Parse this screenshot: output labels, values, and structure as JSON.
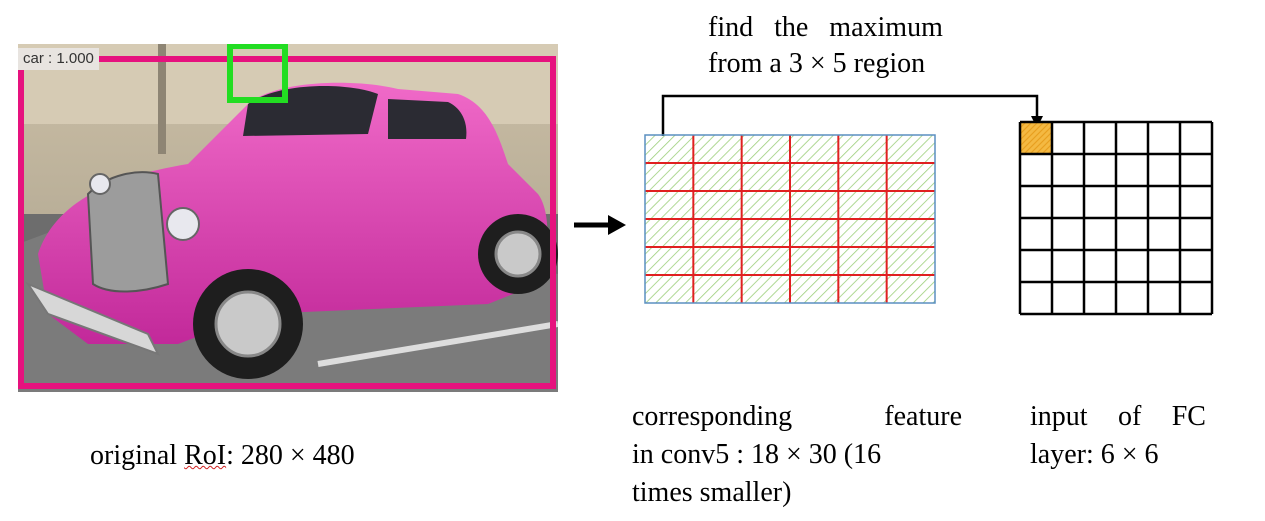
{
  "detection": {
    "label": "car : 1.000",
    "colors": {
      "roi_box": "#e6127e",
      "window_box": "#22dd22"
    }
  },
  "captions": {
    "roi": {
      "prefix": "original ",
      "squiggle": "RoI",
      "suffix": ": 280 × 480"
    },
    "top_line1": "find the maximum",
    "top_line2": "from a 3 × 5 region",
    "feature_line1_a": "corresponding",
    "feature_line1_b": "feature",
    "feature_line2": "in conv5 : 18 × 30 (16",
    "feature_line3": "times smaller)",
    "fc_line1_a": "input",
    "fc_line1_b": "of",
    "fc_line1_c": "FC",
    "fc_line2": "layer: 6 × 6"
  },
  "feature_grid": {
    "rows": 6,
    "cols": 6,
    "line_color": "#e02020",
    "border_color": "#5a8fc0",
    "hatch_color": "#9ccf7a"
  },
  "fc_grid": {
    "rows": 6,
    "cols": 6,
    "line_color": "#000000",
    "highlight_cell": [
      0,
      0
    ],
    "highlight_color": "#f4b942"
  },
  "icons": [
    "car-photo",
    "arrow-right-icon",
    "bracket-arrow-icon"
  ]
}
